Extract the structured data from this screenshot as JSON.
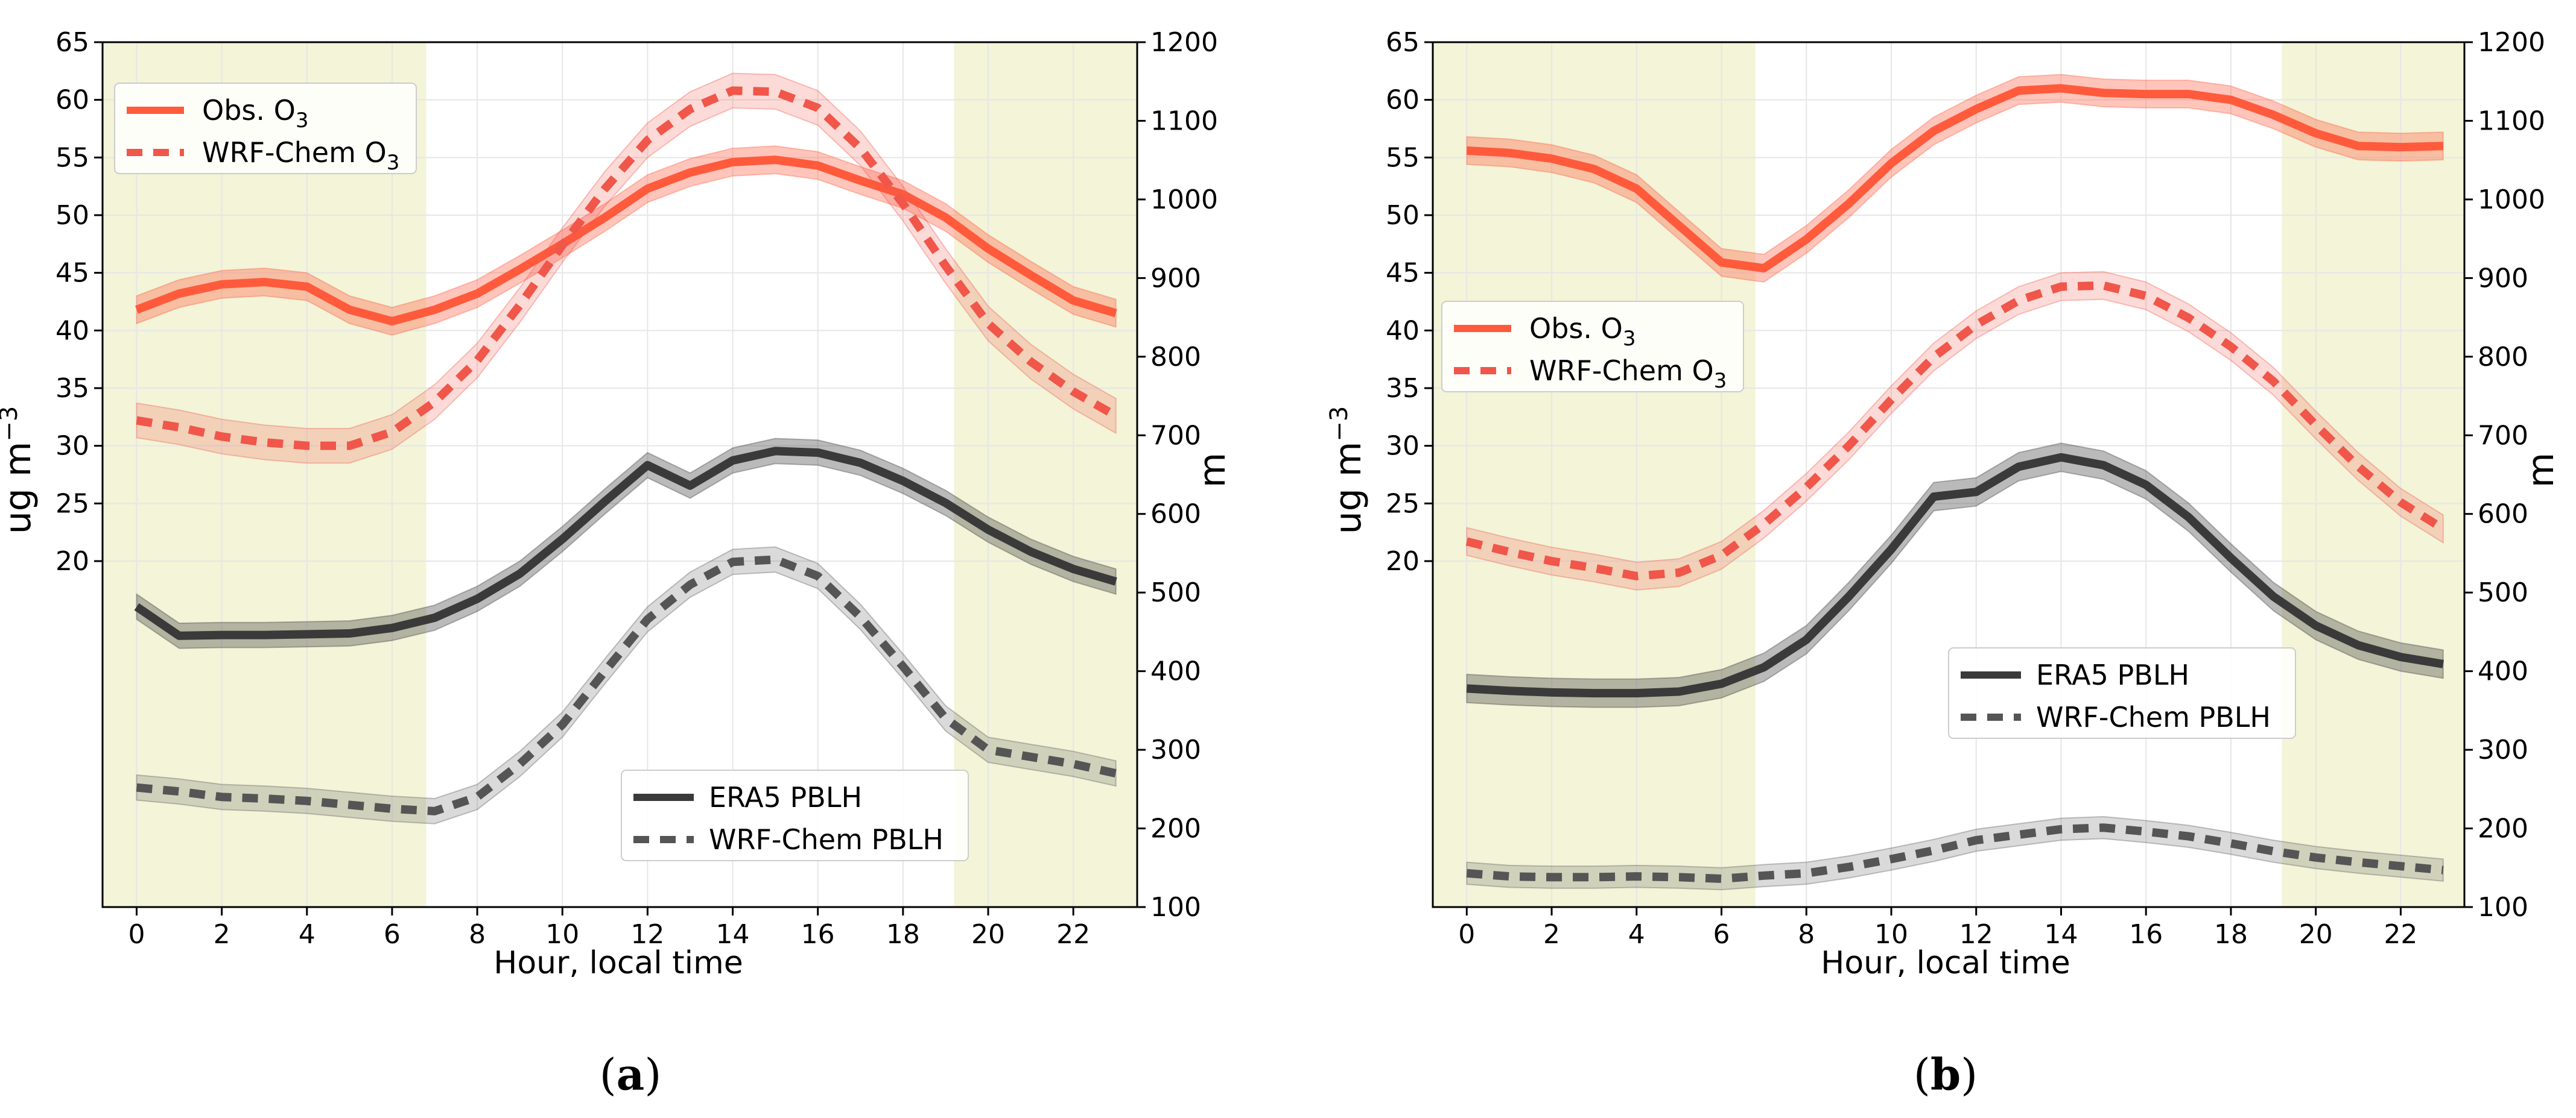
{
  "colors": {
    "obs": "#ff5a3c",
    "wrf_o3": "#f0564a",
    "era5": "#3a3a3a",
    "wrf_pblh": "#555555",
    "night_shade": "#f3f4d8",
    "grid": "#e6e6e6"
  },
  "chart_data": [
    {
      "type": "line",
      "panel_label": "a",
      "xlabel": "Hour, local time",
      "ylabel_left_base": "ug m",
      "ylabel_left_exp": "−3",
      "ylabel_right": "m",
      "xlim": [
        -0.8,
        23.5
      ],
      "ylim_left": [
        -10,
        65
      ],
      "ylim_right": [
        100,
        1200
      ],
      "left_ticks": [
        20,
        25,
        30,
        35,
        40,
        45,
        50,
        55,
        60,
        65
      ],
      "right_ticks": [
        100,
        200,
        300,
        400,
        500,
        600,
        700,
        800,
        900,
        1000,
        1100,
        1200
      ],
      "x_ticks": [
        0,
        2,
        4,
        6,
        8,
        10,
        12,
        14,
        16,
        18,
        20,
        22
      ],
      "night_shading": [
        [
          -0.8,
          6.8
        ],
        [
          19.2,
          23.5
        ]
      ],
      "x": [
        0,
        1,
        2,
        3,
        4,
        5,
        6,
        7,
        8,
        9,
        10,
        11,
        12,
        13,
        14,
        15,
        16,
        17,
        18,
        19,
        20,
        21,
        22,
        23
      ],
      "series": [
        {
          "name": "Obs. O3",
          "axis": "left",
          "style": "solid",
          "color_key": "obs",
          "band": 1.2,
          "values": [
            41.8,
            43.2,
            44.0,
            44.2,
            43.8,
            41.8,
            40.8,
            41.8,
            43.2,
            45.3,
            47.5,
            49.8,
            52.3,
            53.7,
            54.6,
            54.8,
            54.3,
            53.0,
            51.8,
            49.8,
            47.1,
            44.8,
            42.6,
            41.5
          ]
        },
        {
          "name": "WRF-Chem O3",
          "axis": "left",
          "style": "dashed",
          "color_key": "wrf_o3",
          "band": 1.5,
          "values": [
            32.2,
            31.6,
            30.8,
            30.3,
            30.0,
            30.0,
            31.2,
            33.8,
            37.4,
            42.2,
            47.4,
            52.3,
            56.5,
            59.2,
            60.8,
            60.7,
            59.3,
            55.8,
            51.0,
            45.6,
            40.6,
            37.3,
            34.7,
            32.6
          ]
        },
        {
          "name": "ERA5 PBLH",
          "axis": "right",
          "style": "solid",
          "color_key": "era5",
          "band": 16,
          "values": [
            482,
            445,
            446,
            446,
            447,
            448,
            455,
            468,
            492,
            524,
            568,
            616,
            662,
            636,
            668,
            680,
            678,
            665,
            642,
            614,
            580,
            552,
            530,
            514
          ]
        },
        {
          "name": "WRF-Chem PBLH",
          "axis": "right",
          "style": "dashed",
          "color_key": "wrf_pblh",
          "band": 16,
          "values": [
            252,
            247,
            240,
            238,
            235,
            230,
            225,
            222,
            240,
            282,
            332,
            400,
            466,
            510,
            539,
            542,
            521,
            469,
            406,
            340,
            300,
            291,
            282,
            270
          ]
        }
      ],
      "legend_o3": [
        "Obs. O",
        "WRF-Chem O"
      ],
      "legend_o3_sub": "3",
      "legend_pblh": [
        "ERA5 PBLH",
        "WRF-Chem PBLH"
      ]
    },
    {
      "type": "line",
      "panel_label": "b",
      "xlabel": "Hour, local time",
      "ylabel_left_base": "ug m",
      "ylabel_left_exp": "−3",
      "ylabel_right": "m",
      "xlim": [
        -0.8,
        23.5
      ],
      "ylim_left": [
        -10,
        65
      ],
      "ylim_right": [
        100,
        1200
      ],
      "left_ticks": [
        20,
        25,
        30,
        35,
        40,
        45,
        50,
        55,
        60,
        65
      ],
      "right_ticks": [
        100,
        200,
        300,
        400,
        500,
        600,
        700,
        800,
        900,
        1000,
        1100,
        1200
      ],
      "x_ticks": [
        0,
        2,
        4,
        6,
        8,
        10,
        12,
        14,
        16,
        18,
        20,
        22
      ],
      "night_shading": [
        [
          -0.8,
          6.8
        ],
        [
          19.2,
          23.5
        ]
      ],
      "x": [
        0,
        1,
        2,
        3,
        4,
        5,
        6,
        7,
        8,
        9,
        10,
        11,
        12,
        13,
        14,
        15,
        16,
        17,
        18,
        19,
        20,
        21,
        22,
        23
      ],
      "series": [
        {
          "name": "Obs. O3",
          "axis": "left",
          "style": "solid",
          "color_key": "obs",
          "band": 1.2,
          "values": [
            55.6,
            55.4,
            54.9,
            54.0,
            52.3,
            49.1,
            45.9,
            45.4,
            47.9,
            51.0,
            54.5,
            57.3,
            59.2,
            60.8,
            61.0,
            60.6,
            60.5,
            60.5,
            60.0,
            58.7,
            57.1,
            56.0,
            55.9,
            56.0
          ]
        },
        {
          "name": "WRF-Chem O3",
          "axis": "left",
          "style": "dashed",
          "color_key": "wrf_o3",
          "band": 1.2,
          "values": [
            21.7,
            20.8,
            20.0,
            19.4,
            18.7,
            19.0,
            20.5,
            23.2,
            26.4,
            30.0,
            34.0,
            37.7,
            40.5,
            42.6,
            43.8,
            43.9,
            43.0,
            41.1,
            38.6,
            35.6,
            31.8,
            28.2,
            25.1,
            22.8
          ]
        },
        {
          "name": "ERA5 PBLH",
          "axis": "right",
          "style": "solid",
          "color_key": "era5",
          "band": 18,
          "values": [
            378,
            375,
            373,
            372,
            372,
            374,
            384,
            405,
            440,
            495,
            555,
            622,
            628,
            660,
            672,
            662,
            637,
            596,
            544,
            495,
            458,
            433,
            418,
            409
          ]
        },
        {
          "name": "WRF-Chem PBLH",
          "axis": "right",
          "style": "dashed",
          "color_key": "wrf_pblh",
          "band": 14,
          "values": [
            143,
            139,
            138,
            138,
            139,
            138,
            136,
            140,
            143,
            151,
            161,
            172,
            185,
            192,
            199,
            201,
            196,
            190,
            181,
            171,
            163,
            157,
            152,
            147
          ]
        }
      ],
      "legend_o3": [
        "Obs. O",
        "WRF-Chem O"
      ],
      "legend_o3_sub": "3",
      "legend_pblh": [
        "ERA5 PBLH",
        "WRF-Chem PBLH"
      ]
    }
  ]
}
